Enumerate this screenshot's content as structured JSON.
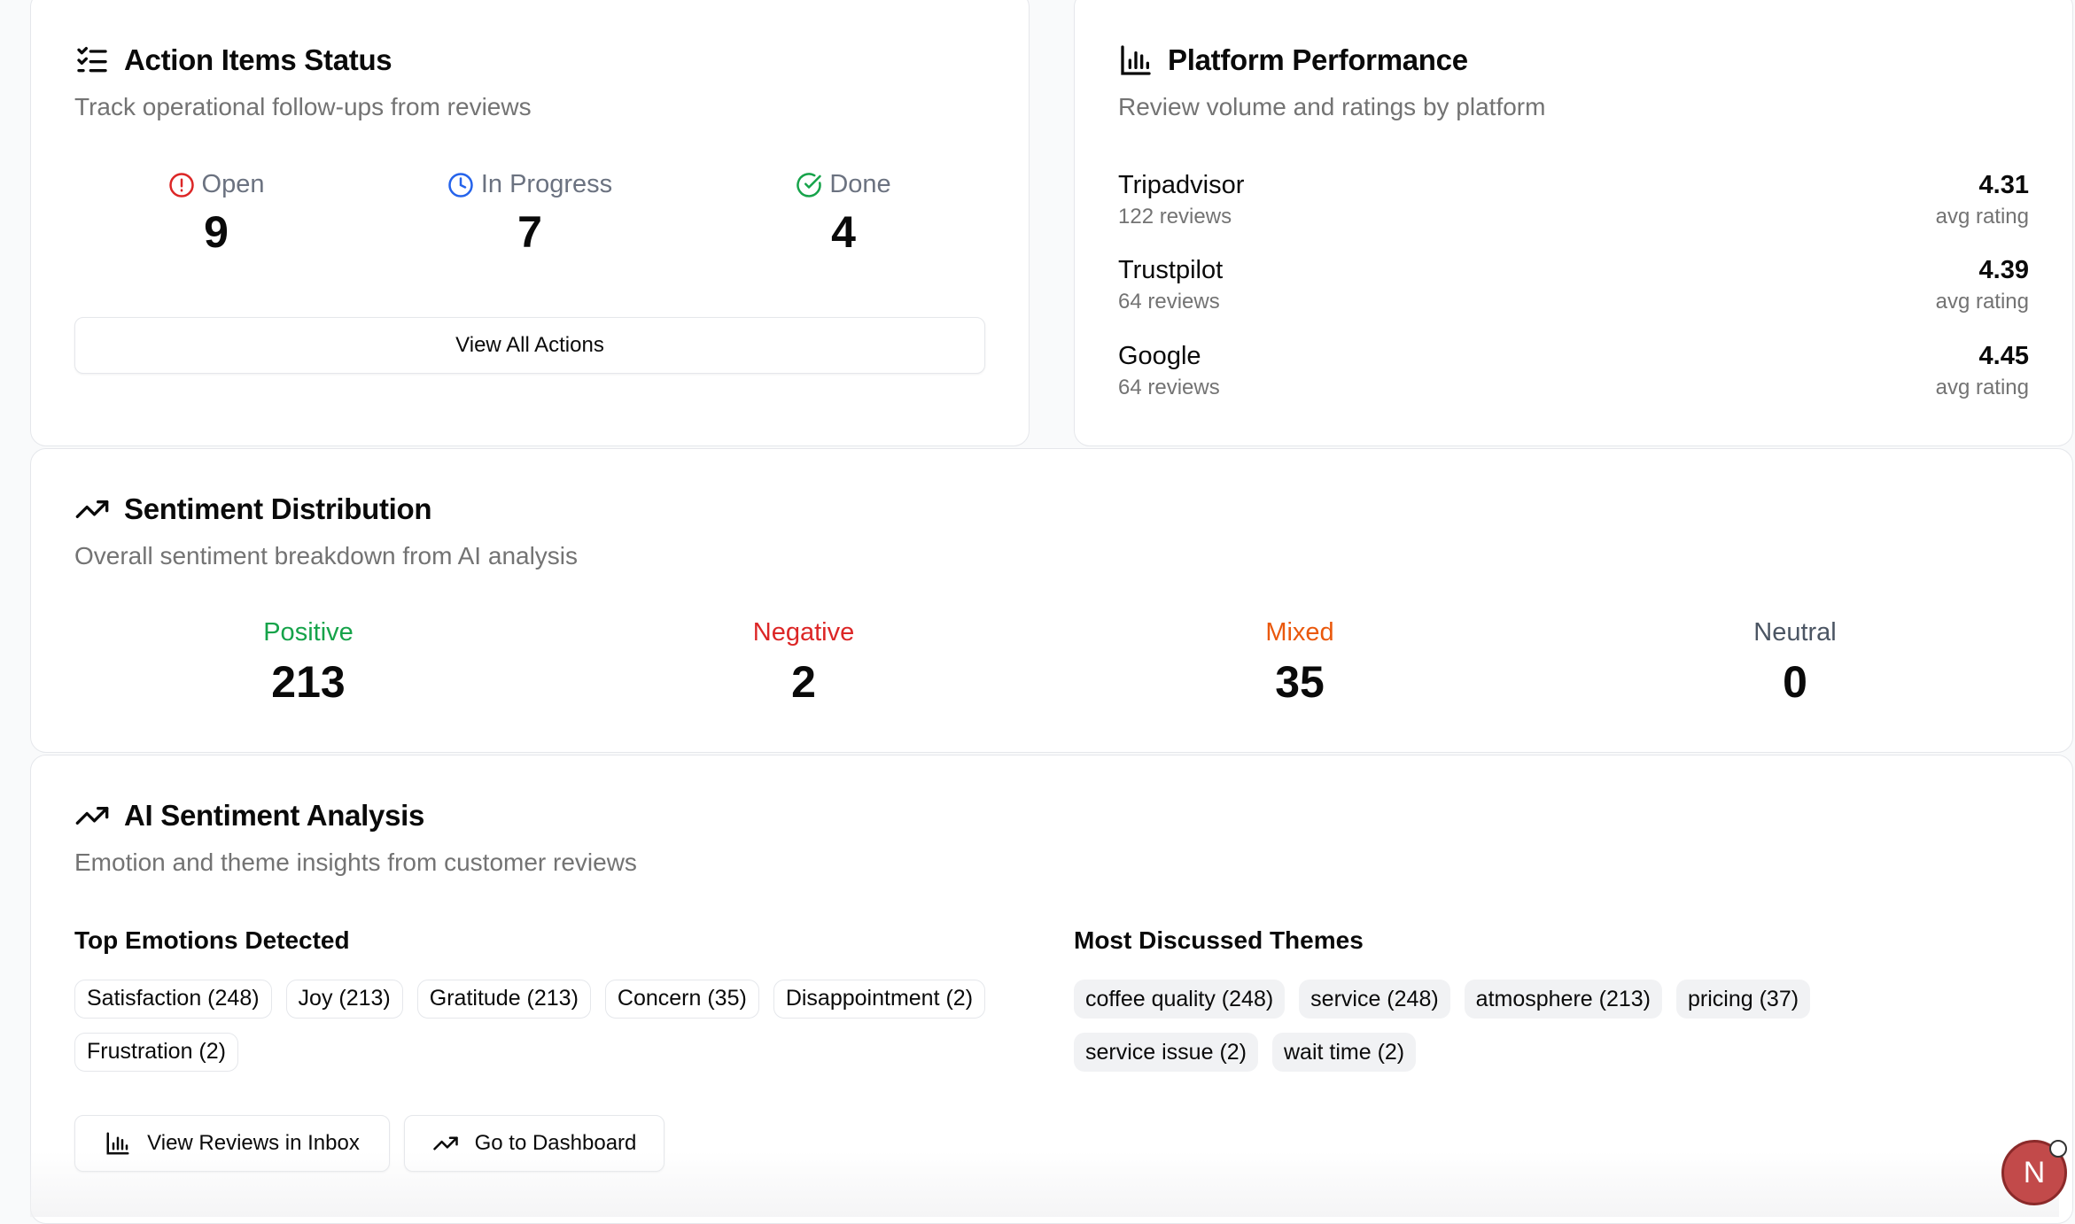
{
  "action_items": {
    "title": "Action Items Status",
    "subtitle": "Track operational follow-ups from reviews",
    "stats": [
      {
        "label": "Open",
        "value": "9",
        "icon": "alert-circle-icon",
        "color": "#dc2626"
      },
      {
        "label": "In Progress",
        "value": "7",
        "icon": "clock-icon",
        "color": "#2563eb"
      },
      {
        "label": "Done",
        "value": "4",
        "icon": "check-circle-icon",
        "color": "#16a34a"
      }
    ],
    "button_label": "View All Actions"
  },
  "platform": {
    "title": "Platform Performance",
    "subtitle": "Review volume and ratings by platform",
    "rows": [
      {
        "name": "Tripadvisor",
        "count": "122 reviews",
        "rating": "4.31",
        "rating_label": "avg rating"
      },
      {
        "name": "Trustpilot",
        "count": "64 reviews",
        "rating": "4.39",
        "rating_label": "avg rating"
      },
      {
        "name": "Google",
        "count": "64 reviews",
        "rating": "4.45",
        "rating_label": "avg rating"
      }
    ]
  },
  "sentiment": {
    "title": "Sentiment Distribution",
    "subtitle": "Overall sentiment breakdown from AI analysis",
    "items": [
      {
        "label": "Positive",
        "value": "213",
        "color": "#16a34a"
      },
      {
        "label": "Negative",
        "value": "2",
        "color": "#dc2626"
      },
      {
        "label": "Mixed",
        "value": "35",
        "color": "#ea580c"
      },
      {
        "label": "Neutral",
        "value": "0",
        "color": "#4b5563"
      }
    ]
  },
  "ai_analysis": {
    "title": "AI Sentiment Analysis",
    "subtitle": "Emotion and theme insights from customer reviews",
    "emotions_heading": "Top Emotions Detected",
    "emotions": [
      "Satisfaction (248)",
      "Joy (213)",
      "Gratitude (213)",
      "Concern (35)",
      "Disappointment (2)",
      "Frustration (2)"
    ],
    "themes_heading": "Most Discussed Themes",
    "themes": [
      "coffee quality (248)",
      "service (248)",
      "atmosphere (213)",
      "pricing (37)",
      "service issue (2)",
      "wait time (2)"
    ],
    "buttons": {
      "inbox": "View Reviews in Inbox",
      "dashboard": "Go to Dashboard"
    }
  },
  "avatar": {
    "initial": "N",
    "color": "#c24a4a"
  },
  "icons": {
    "action_title": "list-checks-icon",
    "platform_title": "bar-chart-icon",
    "sentiment_title": "trending-up-icon",
    "ai_title": "trending-up-icon"
  }
}
